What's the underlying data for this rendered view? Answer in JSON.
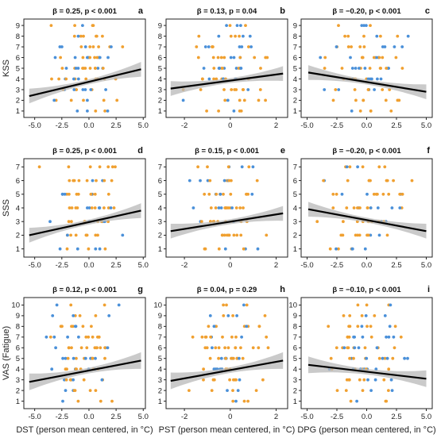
{
  "colors": {
    "blue": "#4a90d9",
    "orange": "#f0a030",
    "line": "#000000",
    "band": "#b8b8b8"
  },
  "chart_data": {
    "type": "scatter",
    "grid": false,
    "columns": [
      {
        "xlabel": "DST (person mean centered, in °C)",
        "xlim": [
          -6,
          5.2
        ],
        "xticks": [
          "-5.0",
          "-2.5",
          "0.0",
          "2.5",
          "5.0"
        ],
        "xtick_values": [
          -5,
          -2.5,
          0,
          2.5,
          5
        ]
      },
      {
        "xlabel": "PST (person mean centered, in °C)",
        "xlim": [
          -2.8,
          2.5
        ],
        "xticks": [
          "-2",
          "0",
          "2"
        ],
        "xtick_values": [
          -2,
          0,
          2
        ]
      },
      {
        "xlabel": "DPG (person mean centered, in °C)",
        "xlim": [
          -5.5,
          5.5
        ],
        "xticks": [
          "-5.0",
          "-2.5",
          "0.0",
          "2.5",
          "5.0"
        ],
        "xtick_values": [
          -5,
          -2.5,
          0,
          2.5,
          5
        ]
      }
    ],
    "rows": [
      {
        "ylabel": "KSS",
        "yticks": [
          "1",
          "2",
          "3",
          "4",
          "5",
          "6",
          "7",
          "8",
          "9"
        ],
        "ymin": 1,
        "ymax": 9,
        "ylim": [
          0.4,
          9.6
        ]
      },
      {
        "ylabel": "SSS",
        "yticks": [
          "1",
          "2",
          "3",
          "4",
          "5",
          "6",
          "7"
        ],
        "ymin": 1,
        "ymax": 7,
        "ylim": [
          0.4,
          7.6
        ]
      },
      {
        "ylabel": "VAS (Fatigue)",
        "yticks": [
          "1",
          "2",
          "3",
          "4",
          "5",
          "6",
          "7",
          "8",
          "9",
          "10"
        ],
        "ymin": 1,
        "ymax": 10,
        "ylim": [
          0.3,
          10.7
        ]
      }
    ],
    "panels": [
      {
        "letter": "a",
        "stat": "β = 0.25, p < 0.001",
        "col": 0,
        "row": 0,
        "fit_x": [
          -5.5,
          4.8
        ],
        "fit_y": [
          2.4,
          4.9
        ]
      },
      {
        "letter": "b",
        "stat": "β = 0.13, p = 0.04",
        "col": 1,
        "row": 0,
        "fit_x": [
          -2.6,
          2.3
        ],
        "fit_y": [
          3.1,
          4.5
        ]
      },
      {
        "letter": "c",
        "stat": "β = −0.20, p < 0.001",
        "col": 2,
        "row": 0,
        "fit_x": [
          -4.9,
          5.0
        ],
        "fit_y": [
          4.6,
          2.8
        ]
      },
      {
        "letter": "d",
        "stat": "β = 0.25, p < 0.001",
        "col": 0,
        "row": 1,
        "fit_x": [
          -5.5,
          4.8
        ],
        "fit_y": [
          2.0,
          3.8
        ]
      },
      {
        "letter": "e",
        "stat": "β = 0.15, p < 0.001",
        "col": 1,
        "row": 1,
        "fit_x": [
          -2.6,
          2.3
        ],
        "fit_y": [
          2.3,
          3.6
        ]
      },
      {
        "letter": "f",
        "stat": "β = −0.20, p < 0.001",
        "col": 2,
        "row": 1,
        "fit_x": [
          -4.9,
          5.0
        ],
        "fit_y": [
          3.9,
          2.3
        ]
      },
      {
        "letter": "g",
        "stat": "β = 0.12, p < 0.001",
        "col": 0,
        "row": 2,
        "fit_x": [
          -5.5,
          4.8
        ],
        "fit_y": [
          2.8,
          4.8
        ]
      },
      {
        "letter": "h",
        "stat": "β = 0.04, p = 0.29",
        "col": 1,
        "row": 2,
        "fit_x": [
          -2.6,
          2.3
        ],
        "fit_y": [
          2.9,
          4.8
        ]
      },
      {
        "letter": "i",
        "stat": "β = −0.10, p < 0.001",
        "col": 2,
        "row": 2,
        "fit_x": [
          -4.9,
          5.0
        ],
        "fit_y": [
          4.4,
          3.1
        ]
      }
    ]
  }
}
